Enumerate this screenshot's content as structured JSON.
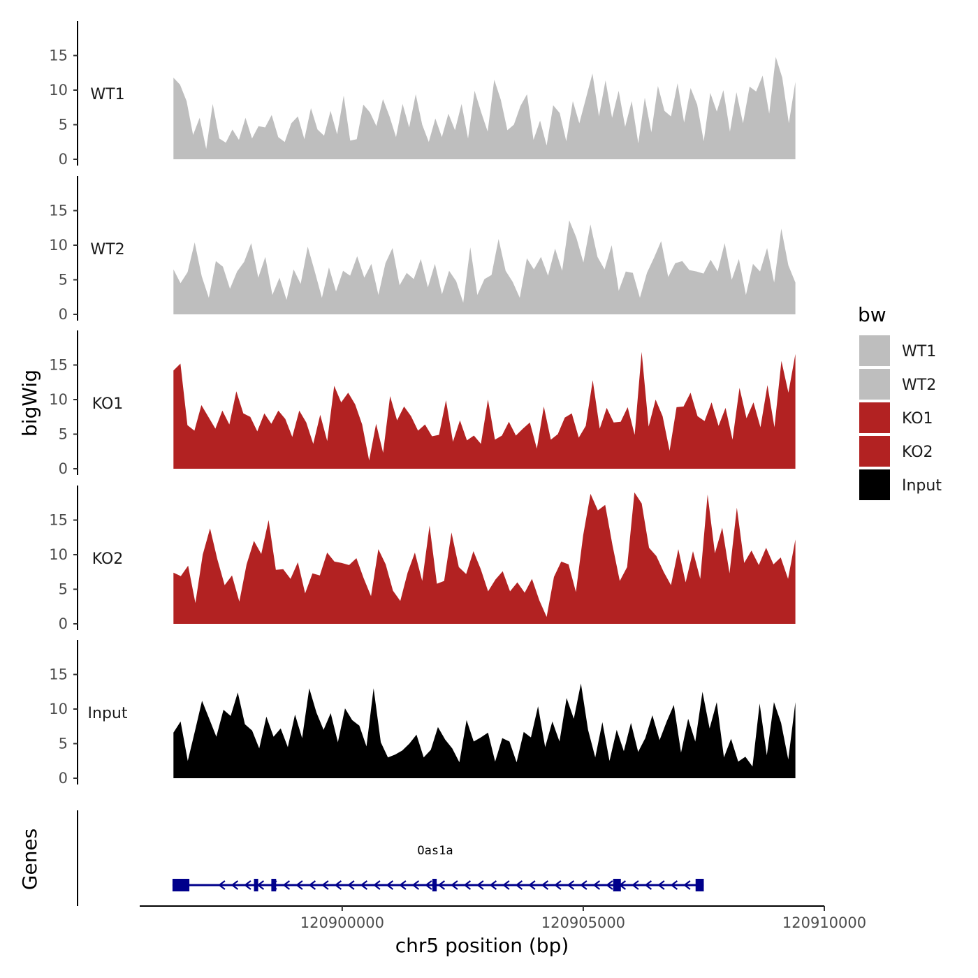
{
  "chart_data": {
    "type": "area",
    "ylabel": "bigWig",
    "xlabel": "chr5 position (bp)",
    "xlim": [
      120895800,
      120910000
    ],
    "ylim": [
      0,
      20
    ],
    "yticks": [
      0,
      5,
      10,
      15
    ],
    "xticks": [
      120900000,
      120905000,
      120910000
    ],
    "xtick_labels": [
      "120900000",
      "120905000",
      "120910000"
    ],
    "legend": {
      "title": "bw",
      "placement": "right",
      "entries": [
        {
          "label": "WT1",
          "color": "#bebebe"
        },
        {
          "label": "WT2",
          "color": "#bebebe"
        },
        {
          "label": "KO1",
          "color": "#b22222"
        },
        {
          "label": "KO2",
          "color": "#b22222"
        },
        {
          "label": "Input",
          "color": "#000000"
        }
      ]
    },
    "x_range": [
      120896500,
      120909400
    ],
    "series": [
      {
        "name": "WT1",
        "color": "#bebebe",
        "values": [
          11.8,
          10.8,
          8.4,
          3.5,
          6.0,
          1.5,
          8.0,
          3.0,
          2.4,
          4.3,
          2.8,
          6.0,
          3.0,
          4.8,
          4.6,
          6.4,
          3.2,
          2.5,
          5.2,
          6.2,
          2.9,
          7.4,
          4.3,
          3.4,
          7.0,
          3.6,
          9.2,
          2.7,
          2.9,
          7.9,
          6.8,
          4.8,
          8.7,
          6.2,
          3.2,
          8.0,
          4.6,
          9.4,
          5.0,
          2.5,
          5.9,
          3.2,
          6.6,
          4.2,
          8.0,
          3.0,
          9.9,
          6.8,
          4.0,
          11.5,
          8.6,
          4.2,
          5.0,
          7.7,
          9.4,
          2.8,
          5.6,
          2.0,
          7.8,
          6.7,
          2.6,
          8.4,
          5.2,
          8.8,
          12.4,
          6.2,
          11.4,
          6.0,
          9.9,
          4.7,
          8.4,
          2.3,
          8.9,
          3.9,
          10.6,
          7.0,
          6.2,
          11.0,
          5.3,
          10.3,
          7.9,
          2.6,
          9.6,
          6.9,
          10.0,
          4.0,
          9.7,
          5.2,
          10.5,
          9.8,
          12.1,
          6.6,
          14.8,
          11.8,
          5.2,
          11.2
        ]
      },
      {
        "name": "WT2",
        "color": "#bebebe",
        "values": [
          6.5,
          4.5,
          6.1,
          10.4,
          5.5,
          2.4,
          7.7,
          6.9,
          3.7,
          6.2,
          7.6,
          10.3,
          5.3,
          8.3,
          2.8,
          5.3,
          2.1,
          6.5,
          4.4,
          9.8,
          6.2,
          2.4,
          6.8,
          3.3,
          6.3,
          5.6,
          8.4,
          5.3,
          7.3,
          2.8,
          7.4,
          9.6,
          4.2,
          6.0,
          5.1,
          8.0,
          3.9,
          7.3,
          2.9,
          6.3,
          4.8,
          1.7,
          9.7,
          2.8,
          5.1,
          5.7,
          10.9,
          6.3,
          4.7,
          2.4,
          8.1,
          6.5,
          8.3,
          5.6,
          9.5,
          6.3,
          13.6,
          11.1,
          7.5,
          13.0,
          8.3,
          6.5,
          10.0,
          3.4,
          6.2,
          6.0,
          2.4,
          6.0,
          8.2,
          10.6,
          5.4,
          7.4,
          7.7,
          6.4,
          6.2,
          5.9,
          7.9,
          6.2,
          10.3,
          5.0,
          8.0,
          2.8,
          7.3,
          6.2,
          9.6,
          4.6,
          12.4,
          7.1,
          4.6
        ]
      },
      {
        "name": "KO1",
        "color": "#b22222",
        "values": [
          14.2,
          15.2,
          6.3,
          5.5,
          9.2,
          7.5,
          5.8,
          8.4,
          6.4,
          11.2,
          8.0,
          7.5,
          5.4,
          8.0,
          6.5,
          8.4,
          7.2,
          4.6,
          8.4,
          6.7,
          3.6,
          7.8,
          4.0,
          12.0,
          9.6,
          11.0,
          9.3,
          6.4,
          1.2,
          6.5,
          2.3,
          10.5,
          7.0,
          9.0,
          7.6,
          5.5,
          6.4,
          4.7,
          4.9,
          9.9,
          3.9,
          7.0,
          4.1,
          4.8,
          3.6,
          10.0,
          4.2,
          4.8,
          6.8,
          4.8,
          5.8,
          6.7,
          2.9,
          9.0,
          4.2,
          5.0,
          7.4,
          8.0,
          4.5,
          6.2,
          12.8,
          5.8,
          8.8,
          6.7,
          6.8,
          8.9,
          4.9,
          16.9,
          6.1,
          10.0,
          7.6,
          2.6,
          8.9,
          9.0,
          11.0,
          7.6,
          6.9,
          9.6,
          6.2,
          8.8,
          4.2,
          11.7,
          7.3,
          9.6,
          6.0,
          12.1,
          6.0,
          15.6,
          11.0,
          16.6
        ]
      },
      {
        "name": "KO2",
        "color": "#b22222",
        "values": [
          7.4,
          6.9,
          8.4,
          3.0,
          10.0,
          13.8,
          9.3,
          5.6,
          7.0,
          3.2,
          8.6,
          12.0,
          10.1,
          15.0,
          7.8,
          7.9,
          6.5,
          8.9,
          4.4,
          7.3,
          7.0,
          10.3,
          9.0,
          8.8,
          8.5,
          9.5,
          6.6,
          4.0,
          10.8,
          8.6,
          4.8,
          3.3,
          7.4,
          10.3,
          6.2,
          14.2,
          5.8,
          6.2,
          13.2,
          8.2,
          7.2,
          10.5,
          7.9,
          4.7,
          6.4,
          7.6,
          4.7,
          6.0,
          4.5,
          6.5,
          3.4,
          1.0,
          6.8,
          9.0,
          8.6,
          4.6,
          12.8,
          18.8,
          16.4,
          17.2,
          11.4,
          6.2,
          8.2,
          19.0,
          17.4,
          11.0,
          9.8,
          7.5,
          5.6,
          10.8,
          6.0,
          10.5,
          6.5,
          18.7,
          10.2,
          13.9,
          7.3,
          16.8,
          8.8,
          10.6,
          8.5,
          11.0,
          8.6,
          9.6,
          6.5,
          12.2
        ]
      },
      {
        "name": "Input",
        "color": "#000000",
        "values": [
          6.6,
          8.2,
          2.5,
          6.8,
          11.2,
          8.6,
          6.0,
          9.9,
          9.0,
          12.4,
          7.8,
          6.9,
          4.3,
          8.9,
          6.0,
          7.2,
          4.5,
          9.2,
          5.8,
          13.0,
          9.5,
          7.0,
          9.4,
          5.2,
          10.1,
          8.4,
          7.6,
          4.6,
          13.0,
          5.2,
          3.0,
          3.4,
          4.0,
          5.0,
          6.3,
          3.0,
          4.1,
          7.4,
          5.6,
          4.3,
          2.3,
          8.4,
          5.3,
          5.9,
          6.6,
          2.4,
          5.8,
          5.3,
          2.3,
          6.7,
          5.9,
          10.4,
          4.5,
          8.2,
          5.3,
          11.6,
          8.6,
          13.7,
          7.0,
          3.0,
          8.1,
          2.5,
          7.0,
          3.9,
          8.0,
          3.8,
          5.8,
          9.1,
          5.5,
          8.2,
          10.6,
          3.7,
          8.6,
          5.3,
          12.5,
          7.2,
          11.0,
          3.0,
          5.7,
          2.4,
          3.1,
          1.7,
          10.8,
          3.3,
          11.0,
          8.0,
          2.7,
          11.0
        ]
      }
    ],
    "gene_track": {
      "label": "Genes",
      "gene_name": "Oas1a",
      "strand": "-",
      "color": "#00008b",
      "start": 120896480,
      "end": 120907500,
      "exons": [
        {
          "start": 120896480,
          "end": 120896830
        },
        {
          "start": 120898170,
          "end": 120898230
        },
        {
          "start": 120898530,
          "end": 120898630
        },
        {
          "start": 120901870,
          "end": 120901960
        },
        {
          "start": 120905620,
          "end": 120905780
        },
        {
          "start": 120907330,
          "end": 120907500
        }
      ]
    }
  }
}
